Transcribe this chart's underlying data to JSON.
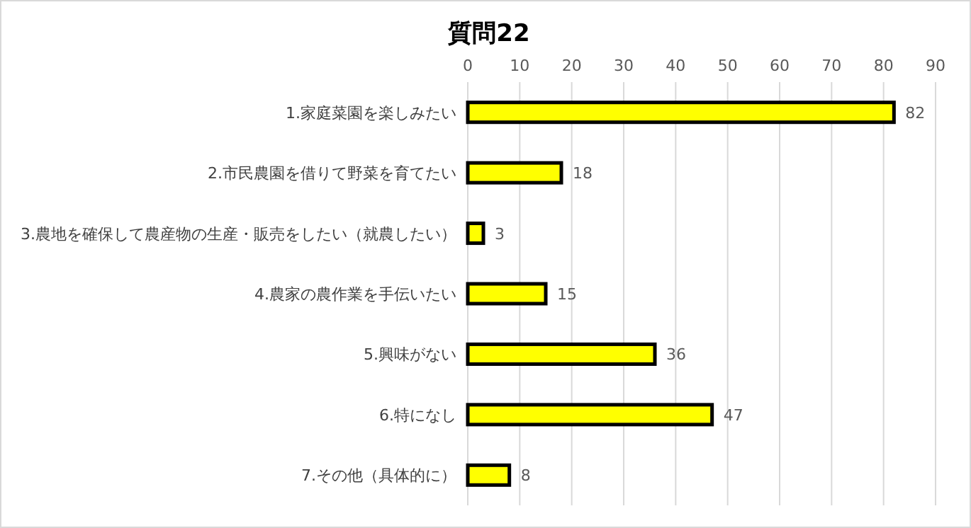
{
  "chart_data": {
    "type": "bar",
    "orientation": "horizontal",
    "title": "質問22",
    "categories": [
      "1.家庭菜園を楽しみたい",
      "2.市民農園を借りて野菜を育てたい",
      "3.農地を確保して農産物の生産・販売をしたい（就農したい）",
      "4.農家の農作業を手伝いたい",
      "5.興味がない",
      "6.特になし",
      "7.その他（具体的に）"
    ],
    "values": [
      82,
      18,
      3,
      15,
      36,
      47,
      8
    ],
    "color": "#ffff00",
    "xlim": [
      0,
      90
    ],
    "xticks": [
      0,
      10,
      20,
      30,
      40,
      50,
      60,
      70,
      80,
      90
    ],
    "grid": "x",
    "data_labels": true
  }
}
